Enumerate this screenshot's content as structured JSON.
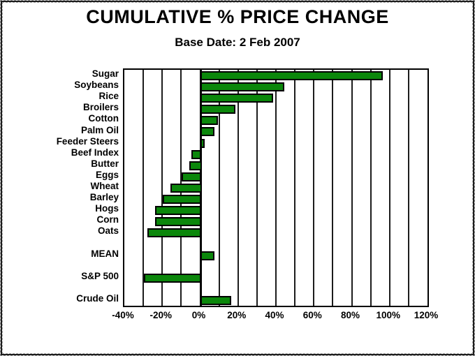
{
  "chart_data": {
    "type": "bar",
    "orientation": "horizontal",
    "title": "CUMULATIVE % PRICE CHANGE",
    "subtitle": "Base Date: 2 Feb 2007",
    "categories": [
      "Sugar",
      "Soybeans",
      "Rice",
      "Broilers",
      "Cotton",
      "Palm Oil",
      "Feeder Steers",
      "Beef Index",
      "Butter",
      "Eggs",
      "Wheat",
      "Barley",
      "Hogs",
      "Corn",
      "Oats",
      "MEAN",
      "S&P 500",
      "Crude Oil"
    ],
    "values": [
      95,
      43,
      37,
      17,
      8,
      6,
      1,
      -4,
      -5,
      -9,
      -15,
      -19,
      -23,
      -23,
      -27,
      6,
      -29,
      15
    ],
    "unit": "%",
    "xlabel": "",
    "ylabel": "",
    "xlim": [
      -40,
      120
    ],
    "grid_step_pct": 10,
    "x_tick_labels": [
      "-40%",
      "-20%",
      "0%",
      "20%",
      "40%",
      "60%",
      "80%",
      "100%",
      "120%"
    ],
    "x_tick_step_pct": 20,
    "legend": "none",
    "gridlines": "vertical",
    "row_slots": [
      0,
      1,
      2,
      3,
      4,
      5,
      6,
      7,
      8,
      9,
      10,
      11,
      12,
      13,
      14,
      16,
      18,
      20
    ],
    "total_row_slots": 21,
    "colors": {
      "bar_fill": "#0B870B",
      "bar_border": "#000000",
      "text": "#000000",
      "background": "#FFFFFF",
      "grid": "#1C1C1C"
    }
  }
}
